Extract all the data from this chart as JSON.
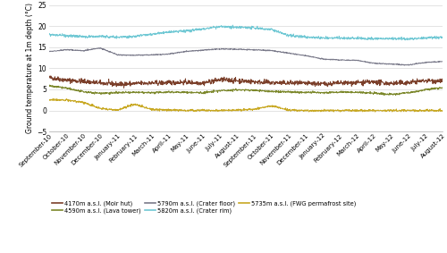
{
  "ylabel": "Ground temperature at 1m depth (°C)",
  "ylim": [
    -5,
    25
  ],
  "yticks": [
    -5,
    0,
    5,
    10,
    15,
    20,
    25
  ],
  "x_labels": [
    "September-10",
    "October-10",
    "November-10",
    "December-10",
    "January-11",
    "February-11",
    "March-11",
    "April-11",
    "May-11",
    "June-11",
    "July-11",
    "August-11",
    "September-11",
    "October-11",
    "November-11",
    "December-11",
    "January-12",
    "February-12",
    "March-12",
    "April-12",
    "May-12",
    "June-12",
    "July-12",
    "August-12"
  ],
  "series": [
    {
      "name": "4170m a.s.l. (Moir hut)",
      "color": "#7b3f2a",
      "noise": 0.28,
      "values": [
        7.8,
        7.2,
        6.9,
        6.5,
        6.2,
        6.4,
        6.5,
        6.6,
        6.7,
        6.5,
        7.3,
        7.1,
        6.8,
        6.6,
        6.5,
        6.4,
        6.3,
        6.5,
        6.6,
        6.7,
        6.4,
        6.6,
        7.1,
        7.0
      ]
    },
    {
      "name": "4590m a.s.l. (Lava tower)",
      "color": "#7b872a",
      "noise": 0.12,
      "values": [
        5.8,
        5.3,
        4.4,
        4.1,
        4.2,
        4.3,
        4.2,
        4.4,
        4.3,
        4.2,
        4.7,
        4.9,
        4.8,
        4.5,
        4.4,
        4.3,
        4.2,
        4.4,
        4.3,
        4.1,
        3.8,
        4.2,
        4.9,
        5.4
      ]
    },
    {
      "name": "5790m a.s.l. (Crater floor)",
      "color": "#7a7a8a",
      "noise": 0.06,
      "values": [
        14.0,
        14.4,
        14.2,
        14.8,
        13.2,
        13.1,
        13.2,
        13.4,
        14.0,
        14.3,
        14.6,
        14.5,
        14.4,
        14.2,
        13.6,
        13.0,
        12.2,
        12.0,
        11.9,
        11.2,
        11.0,
        10.8,
        11.4,
        11.6
      ]
    },
    {
      "name": "5820m a.s.l. (Crater rim)",
      "color": "#70c8d4",
      "noise": 0.15,
      "values": [
        18.0,
        17.8,
        17.5,
        17.6,
        17.4,
        17.6,
        18.1,
        18.6,
        18.9,
        19.3,
        19.9,
        19.8,
        19.6,
        19.2,
        17.8,
        17.4,
        17.2,
        17.2,
        17.1,
        17.0,
        17.1,
        17.0,
        17.2,
        17.4
      ]
    },
    {
      "name": "5735m a.s.l. (FWG permafrost site)",
      "color": "#c8a822",
      "noise": 0.12,
      "values": [
        2.5,
        2.5,
        1.9,
        0.5,
        0.1,
        1.5,
        0.3,
        0.1,
        0.0,
        0.0,
        0.0,
        0.1,
        0.3,
        1.1,
        0.1,
        0.0,
        0.0,
        0.0,
        0.0,
        0.0,
        0.0,
        0.0,
        0.0,
        0.0
      ]
    }
  ],
  "legend_entries": [
    {
      "label": "4170m a.s.l. (Moir hut)",
      "color": "#7b3f2a"
    },
    {
      "label": "4590m a.s.l. (Lava tower)",
      "color": "#7b872a"
    },
    {
      "label": "5790m a.s.l. (Crater floor)",
      "color": "#7a7a8a"
    },
    {
      "label": "5820m a.s.l. (Crater rim)",
      "color": "#70c8d4"
    },
    {
      "label": "5735m a.s.l. (FWG permafrost site)",
      "color": "#c8a822"
    }
  ],
  "background_color": "#ffffff",
  "grid_color": "#d8d8d8"
}
